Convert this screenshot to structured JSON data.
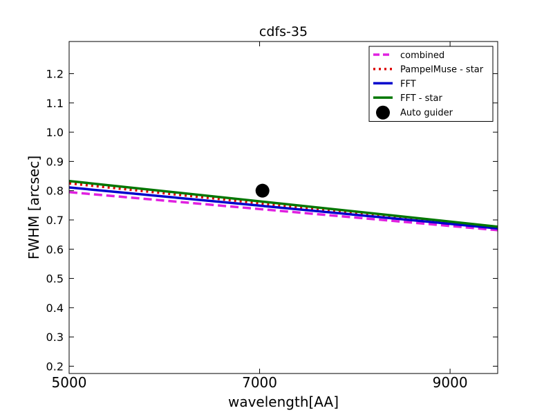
{
  "chart_data": {
    "type": "line",
    "title": "cdfs-35",
    "xlabel": "wavelength[AA]",
    "ylabel": "FWHM [arcsec]",
    "xlim": [
      5000,
      9500
    ],
    "ylim": [
      0.175,
      1.31
    ],
    "x_ticks": [
      5000,
      7000,
      9000
    ],
    "y_ticks": [
      0.2,
      0.3,
      0.4,
      0.5,
      0.6,
      0.7,
      0.8,
      0.9,
      1.0,
      1.1,
      1.2
    ],
    "y_tick_labels": [
      "0.2",
      "0.3",
      "0.4",
      "0.5",
      "0.6",
      "0.7",
      "0.8",
      "0.9",
      "1.0",
      "1.1",
      "1.2"
    ],
    "grid": false,
    "legend_position": "top-right",
    "series": [
      {
        "name": "combined",
        "style": "dashed",
        "color": "#e020e0",
        "x": [
          5000,
          9500
        ],
        "y": [
          0.795,
          0.665
        ]
      },
      {
        "name": "PampelMuse - star",
        "style": "dotted",
        "color": "#dd0000",
        "x": [
          5000,
          9500
        ],
        "y": [
          0.825,
          0.672
        ]
      },
      {
        "name": "FFT",
        "style": "solid",
        "color": "#0000cc",
        "x": [
          5000,
          9500
        ],
        "y": [
          0.811,
          0.671
        ]
      },
      {
        "name": "FFT - star",
        "style": "solid",
        "color": "#007700",
        "x": [
          5000,
          9500
        ],
        "y": [
          0.833,
          0.677
        ]
      }
    ],
    "points": [
      {
        "name": "Auto guider",
        "color": "#000000",
        "x": 7030,
        "y": 0.8
      }
    ]
  }
}
